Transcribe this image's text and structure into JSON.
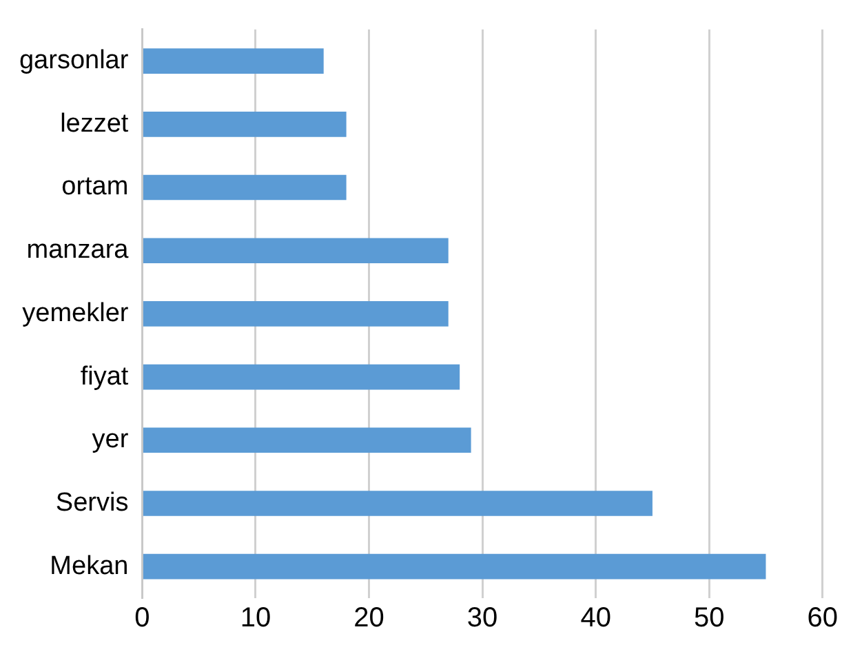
{
  "chart_data": {
    "type": "bar",
    "orientation": "horizontal",
    "categories": [
      "garsonlar",
      "lezzet",
      "ortam",
      "manzara",
      "yemekler",
      "fiyat",
      "yer",
      "Servis",
      "Mekan"
    ],
    "values": [
      16,
      18,
      18,
      27,
      27,
      28,
      29,
      45,
      55
    ],
    "color": "#5b9bd5",
    "xlim": [
      0,
      60
    ],
    "xticks": [
      0,
      10,
      20,
      30,
      40,
      50,
      60
    ],
    "grid": "x",
    "legend": false
  }
}
